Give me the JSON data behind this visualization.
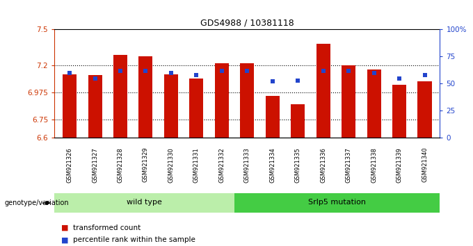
{
  "title": "GDS4988 / 10381118",
  "samples": [
    "GSM921326",
    "GSM921327",
    "GSM921328",
    "GSM921329",
    "GSM921330",
    "GSM921331",
    "GSM921332",
    "GSM921333",
    "GSM921334",
    "GSM921335",
    "GSM921336",
    "GSM921337",
    "GSM921338",
    "GSM921339",
    "GSM921340"
  ],
  "transformed_counts": [
    7.13,
    7.12,
    7.29,
    7.28,
    7.13,
    7.09,
    7.22,
    7.22,
    6.95,
    6.88,
    7.38,
    7.2,
    7.17,
    7.04,
    7.07
  ],
  "percentile_ranks": [
    60,
    55,
    62,
    62,
    60,
    58,
    62,
    62,
    52,
    53,
    62,
    62,
    60,
    55,
    58
  ],
  "ymin": 6.6,
  "ymax": 7.5,
  "yticks": [
    6.6,
    6.75,
    6.975,
    7.2,
    7.5
  ],
  "ytick_labels": [
    "6.6",
    "6.75",
    "6.975",
    "7.2",
    "7.5"
  ],
  "gridlines": [
    6.75,
    6.975,
    7.2
  ],
  "right_yticks": [
    0,
    25,
    50,
    75,
    100
  ],
  "right_ytick_labels": [
    "0",
    "25",
    "50",
    "75",
    "100%"
  ],
  "bar_color": "#cc1100",
  "dot_color": "#2244cc",
  "bg_color": "#ffffff",
  "plot_bg": "#ffffff",
  "wild_type_count": 7,
  "wild_type_label": "wild type",
  "mutation_label": "Srlp5 mutation",
  "genotype_label": "genotype/variation",
  "legend_bar_label": "transformed count",
  "legend_dot_label": "percentile rank within the sample",
  "wild_type_color": "#bbeeaa",
  "mutation_color": "#44cc44",
  "tick_bg_color": "#bbbbbb",
  "bar_width": 0.55
}
